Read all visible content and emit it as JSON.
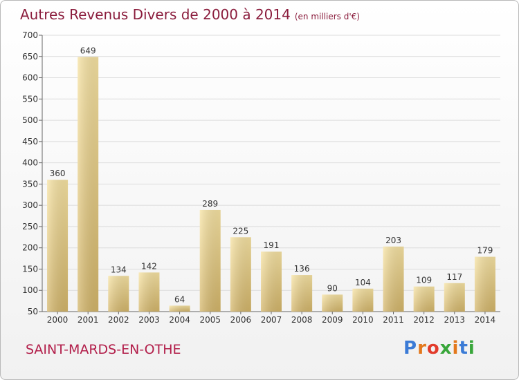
{
  "title": "Autres Revenus Divers de 2000 à 2014",
  "subtitle": "(en milliers d'€)",
  "place": "SAINT-MARDS-EN-OTHE",
  "logo": {
    "text": "Proxiti",
    "colors": [
      "#3b7bd6",
      "#e3781c",
      "#e23b2b",
      "#38a63a",
      "#e3781c",
      "#3b7bd6",
      "#38a63a"
    ]
  },
  "colors": {
    "title": "#8a1c3c",
    "place": "#b21e4a",
    "bar_light": "#f7e3a3",
    "bar_dark": "#d4b66a",
    "grid": "#dcdcdc"
  },
  "chart_data": {
    "type": "bar",
    "title": "Autres Revenus Divers de 2000 à 2014",
    "subtitle": "(en milliers d'€)",
    "xlabel": "",
    "ylabel": "",
    "ylim": [
      50,
      700
    ],
    "yticks": [
      50,
      100,
      150,
      200,
      250,
      300,
      350,
      400,
      450,
      500,
      550,
      600,
      650,
      700
    ],
    "grid": true,
    "categories": [
      "2000",
      "2001",
      "2002",
      "2003",
      "2004",
      "2005",
      "2006",
      "2007",
      "2008",
      "2009",
      "2010",
      "2011",
      "2012",
      "2013",
      "2014"
    ],
    "values": [
      360,
      649,
      134,
      142,
      64,
      289,
      225,
      191,
      136,
      90,
      104,
      203,
      109,
      117,
      179
    ]
  }
}
